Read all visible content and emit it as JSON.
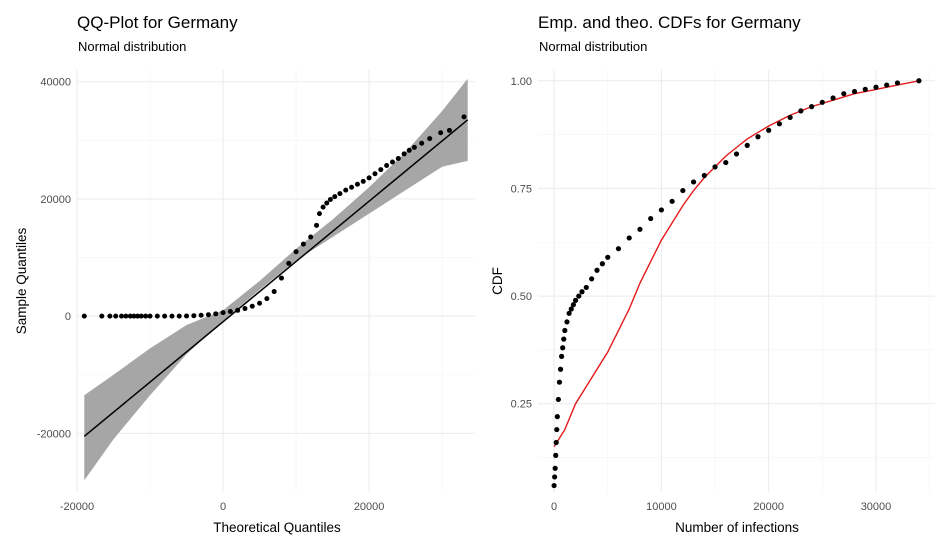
{
  "chart_data": [
    {
      "type": "scatter",
      "title": "QQ-Plot for Germany",
      "subtitle": "Normal distribution",
      "xlabel": "Theoretical Quantiles",
      "ylabel": "Sample Quantiles",
      "xlim": [
        -20000,
        34500
      ],
      "ylim": [
        -30000,
        42000
      ],
      "xticks": [
        -20000,
        0,
        20000
      ],
      "xtick_labels": [
        "-20000",
        "0",
        "20000"
      ],
      "yticks": [
        -20000,
        0,
        20000,
        40000
      ],
      "ytick_labels": [
        "-20000",
        "0",
        "20000",
        "40000"
      ],
      "grid": true,
      "colors": {
        "points": "#000000",
        "line": "#000000",
        "band": "#a6a6a6"
      },
      "reference_line": {
        "x": [
          -19000,
          33500
        ],
        "y": [
          -20500,
          33500
        ]
      },
      "confidence_band": {
        "x": [
          -19000,
          -15000,
          -10000,
          -5000,
          0,
          5000,
          10000,
          15000,
          20000,
          25000,
          30000,
          33500
        ],
        "lower": [
          -28000,
          -21000,
          -13500,
          -6500,
          -800,
          4500,
          9500,
          13500,
          17500,
          21500,
          25500,
          26500
        ],
        "upper": [
          -13500,
          -10000,
          -5500,
          -1500,
          1000,
          6000,
          11500,
          16500,
          22000,
          28000,
          35000,
          40500
        ]
      },
      "points": {
        "x": [
          -19000,
          -16600,
          -15500,
          -14700,
          -13900,
          -13300,
          -12700,
          -12200,
          -11700,
          -11200,
          -10600,
          -10000,
          -9000,
          -8000,
          -7000,
          -6000,
          -5000,
          -4000,
          -3000,
          -2000,
          -1000,
          0,
          1000,
          2000,
          3000,
          4000,
          5000,
          6000,
          7000,
          8000,
          9000,
          10000,
          11000,
          12000,
          12800,
          13200,
          13700,
          14200,
          14700,
          15300,
          16000,
          16800,
          17600,
          18400,
          19200,
          20000,
          20800,
          21600,
          22400,
          23200,
          24000,
          24800,
          25500,
          26200,
          27200,
          28300,
          29800,
          31000,
          33000
        ],
        "y": [
          0,
          0,
          0,
          0,
          0,
          0,
          0,
          0,
          0,
          0,
          0,
          0,
          0,
          0,
          0,
          10,
          30,
          80,
          150,
          250,
          400,
          600,
          800,
          1000,
          1300,
          1700,
          2200,
          3000,
          4200,
          6500,
          9000,
          11000,
          12300,
          13500,
          15500,
          17500,
          18600,
          19300,
          19900,
          20400,
          20900,
          21500,
          22000,
          22500,
          23000,
          23600,
          24300,
          25000,
          25700,
          26300,
          26900,
          27700,
          28300,
          28800,
          29500,
          30300,
          31300,
          31700,
          34000
        ]
      }
    },
    {
      "type": "line",
      "title": "Emp. and theo. CDFs for Germany",
      "subtitle": "Normal distribution",
      "xlabel": "Number of infections",
      "ylabel": "CDF",
      "xlim": [
        -1500,
        35500
      ],
      "ylim": [
        0.045,
        1.025
      ],
      "xticks": [
        0,
        10000,
        20000,
        30000
      ],
      "xtick_labels": [
        "0",
        "10000",
        "20000",
        "30000"
      ],
      "yticks": [
        0.25,
        0.5,
        0.75,
        1.0
      ],
      "ytick_labels": [
        "0.25",
        "0.50",
        "0.75",
        "1.00"
      ],
      "grid": true,
      "series": [
        {
          "kind": "points",
          "color": "#000000",
          "x": [
            0,
            50,
            100,
            150,
            200,
            250,
            300,
            400,
            500,
            600,
            700,
            800,
            900,
            1000,
            1200,
            1400,
            1600,
            1800,
            2000,
            2300,
            2600,
            3000,
            3500,
            4000,
            4500,
            5000,
            6000,
            7000,
            8000,
            9000,
            10000,
            11000,
            12000,
            13000,
            14000,
            15000,
            16000,
            17000,
            18000,
            19000,
            20000,
            21000,
            22000,
            23000,
            24000,
            25000,
            26000,
            27000,
            28000,
            29000,
            30000,
            31000,
            32000,
            34000
          ],
          "y": [
            0.06,
            0.08,
            0.1,
            0.13,
            0.16,
            0.19,
            0.22,
            0.26,
            0.3,
            0.33,
            0.36,
            0.38,
            0.4,
            0.42,
            0.44,
            0.46,
            0.47,
            0.48,
            0.49,
            0.5,
            0.51,
            0.52,
            0.54,
            0.56,
            0.575,
            0.59,
            0.61,
            0.635,
            0.655,
            0.68,
            0.7,
            0.72,
            0.745,
            0.765,
            0.78,
            0.8,
            0.81,
            0.83,
            0.85,
            0.87,
            0.885,
            0.9,
            0.915,
            0.93,
            0.94,
            0.95,
            0.96,
            0.97,
            0.975,
            0.98,
            0.985,
            0.99,
            0.995,
            1.0
          ]
        },
        {
          "kind": "line",
          "color": "#e41a1c",
          "x": [
            0,
            500,
            1000,
            1500,
            2000,
            3000,
            4000,
            5000,
            6000,
            7000,
            8000,
            9000,
            10000,
            11000,
            12000,
            13000,
            14000,
            15000,
            16000,
            17000,
            18000,
            19000,
            20000,
            22000,
            24000,
            26000,
            28000,
            30000,
            32000,
            34000
          ],
          "y": [
            0.15,
            0.17,
            0.19,
            0.22,
            0.25,
            0.29,
            0.33,
            0.37,
            0.42,
            0.47,
            0.53,
            0.58,
            0.63,
            0.67,
            0.71,
            0.745,
            0.775,
            0.8,
            0.825,
            0.845,
            0.865,
            0.88,
            0.895,
            0.92,
            0.94,
            0.955,
            0.97,
            0.98,
            0.99,
            1.0
          ]
        }
      ]
    }
  ]
}
